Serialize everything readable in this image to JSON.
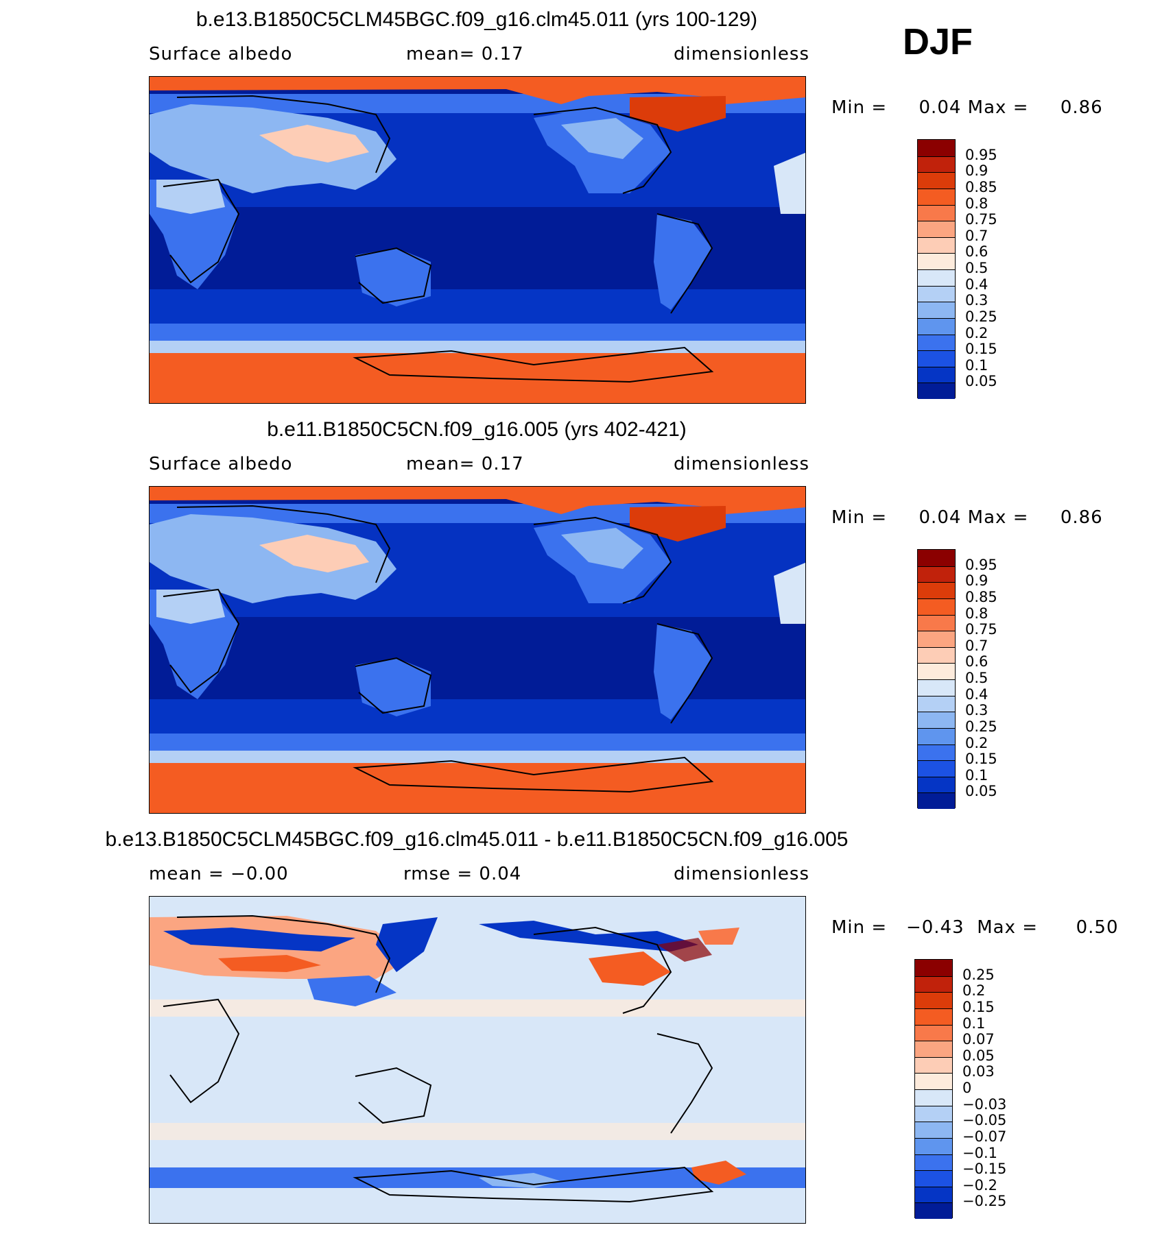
{
  "season": "DJF",
  "panels": [
    {
      "id": "test",
      "title": "b.e13.B1850C5CLM45BGC.f09_g16.clm45.011 (yrs 100-129)",
      "left_label": "Surface  albedo",
      "center_label": "mean=    0.17",
      "right_label": "dimensionless",
      "stats_min_label": "Min  =",
      "stats_min_value": "0.04",
      "stats_max_label": "Max  =",
      "stats_max_value": "0.86",
      "colorbar": {
        "labels": [
          "0.95",
          "0.9",
          "0.85",
          "0.8",
          "0.75",
          "0.7",
          "0.6",
          "0.5",
          "0.4",
          "0.3",
          "0.25",
          "0.2",
          "0.15",
          "0.1",
          "0.05"
        ],
        "colors": [
          "#8b0000",
          "#c1220b",
          "#dc3c0a",
          "#f45c22",
          "#f8794a",
          "#fba581",
          "#fdcdb6",
          "#fdebdc",
          "#d8e7f8",
          "#b4d0f5",
          "#8db7f2",
          "#5f95ee",
          "#3b72ee",
          "#1c52e4",
          "#0535c5",
          "#011c97"
        ]
      }
    },
    {
      "id": "control",
      "title": "b.e11.B1850C5CN.f09_g16.005 (yrs 402-421)",
      "left_label": "Surface  albedo",
      "center_label": "mean=    0.17",
      "right_label": "dimensionless",
      "stats_min_label": "Min  =",
      "stats_min_value": "0.04",
      "stats_max_label": "Max  =",
      "stats_max_value": "0.86",
      "colorbar": {
        "labels": [
          "0.95",
          "0.9",
          "0.85",
          "0.8",
          "0.75",
          "0.7",
          "0.6",
          "0.5",
          "0.4",
          "0.3",
          "0.25",
          "0.2",
          "0.15",
          "0.1",
          "0.05"
        ],
        "colors": [
          "#8b0000",
          "#c1220b",
          "#dc3c0a",
          "#f45c22",
          "#f8794a",
          "#fba581",
          "#fdcdb6",
          "#fdebdc",
          "#d8e7f8",
          "#b4d0f5",
          "#8db7f2",
          "#5f95ee",
          "#3b72ee",
          "#1c52e4",
          "#0535c5",
          "#011c97"
        ]
      }
    },
    {
      "id": "difference",
      "title": "b.e13.B1850C5CLM45BGC.f09_g16.clm45.011 - b.e11.B1850C5CN.f09_g16.005",
      "left_label": "mean  =    −0.00",
      "center_label": "rmse  =     0.04",
      "right_label": "dimensionless",
      "stats_min_label": "Min  =",
      "stats_min_value": "−0.43",
      "stats_max_label": "Max  =",
      "stats_max_value": "0.50",
      "colorbar": {
        "labels": [
          "0.25",
          "0.2",
          "0.15",
          "0.1",
          "0.07",
          "0.05",
          "0.03",
          "0",
          "−0.03",
          "−0.05",
          "−0.07",
          "−0.1",
          "−0.15",
          "−0.2",
          "−0.25"
        ],
        "colors": [
          "#8b0000",
          "#c1220b",
          "#dc3c0a",
          "#f45c22",
          "#f8794a",
          "#fba581",
          "#fdcdb6",
          "#fdebdc",
          "#d8e7f8",
          "#b4d0f5",
          "#8db7f2",
          "#5f95ee",
          "#3b72ee",
          "#1c52e4",
          "#0535c5",
          "#011c97"
        ]
      }
    }
  ],
  "palette": {
    "ocean_deep": "#011c97",
    "ocean_mid": "#0535c5",
    "land_low": "#3b72ee",
    "snow_high": "#f45c22",
    "diff_zero_neg": "#d8e7f8",
    "diff_zero_pos": "#fdebdc"
  }
}
